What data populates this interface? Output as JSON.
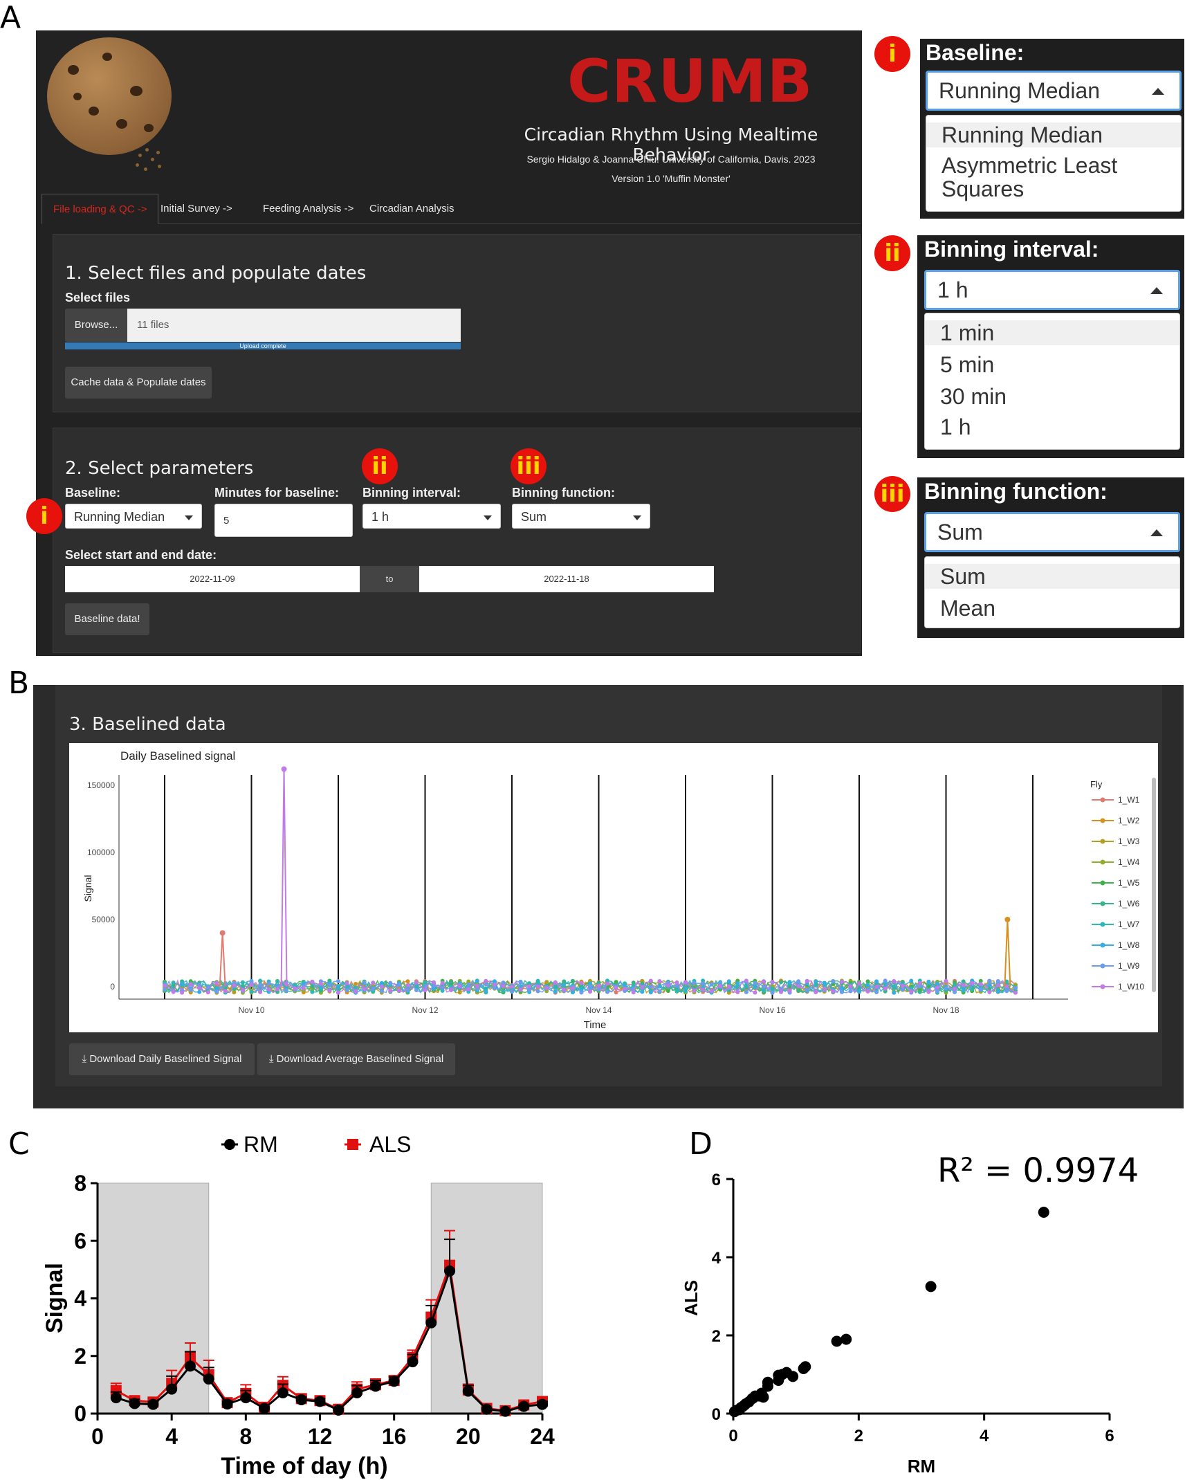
{
  "panel_labels": {
    "a": "A",
    "b": "B",
    "c": "C",
    "d": "D"
  },
  "app": {
    "title": "CRUMB",
    "subtitle": "Circadian Rhythm Using Mealtime Behavior",
    "authors": "Sergio Hidalgo & Joanna Chiu. University of California, Davis. 2023",
    "version": "Version 1.0 'Muffin Monster'",
    "tabs": [
      {
        "label": "File loading & QC ->",
        "active": true
      },
      {
        "label": "Initial Survey ->",
        "active": false
      },
      {
        "label": "Feeding Analysis ->",
        "active": false
      },
      {
        "label": "Circadian Analysis",
        "active": false
      }
    ],
    "section1": {
      "title": "1. Select files and populate dates",
      "select_files_label": "Select files",
      "browse_label": "Browse...",
      "files_value": "11 files",
      "upload_status": "Upload complete",
      "upload_progress": 1.0,
      "cache_button": "Cache data & Populate dates"
    },
    "section2": {
      "title": "2. Select parameters",
      "baseline_label": "Baseline:",
      "baseline_value": "Running Median",
      "minutes_label": "Minutes for baseline:",
      "minutes_value": "5",
      "binning_interval_label": "Binning interval:",
      "binning_interval_value": "1 h",
      "binning_function_label": "Binning function:",
      "binning_function_value": "Sum",
      "date_label": "Select start and end date:",
      "start_date": "2022-11-09",
      "to_label": "to",
      "end_date": "2022-11-18",
      "baseline_button": "Baseline data!"
    },
    "badges": {
      "i": "i",
      "ii": "ii",
      "iii": "iii"
    }
  },
  "callouts": {
    "baseline": {
      "label": "Baseline:",
      "value": "Running Median",
      "options": [
        "Running Median",
        "Asymmetric Least",
        "Squares"
      ]
    },
    "binning_interval": {
      "label": "Binning interval:",
      "value": "1 h",
      "options": [
        "1 min",
        "5 min",
        "30 min",
        "1 h"
      ]
    },
    "binning_function": {
      "label": "Binning function:",
      "value": "Sum",
      "options": [
        "Sum",
        "Mean"
      ]
    }
  },
  "panelB": {
    "section_title": "3. Baselined data",
    "download_daily": "Download Daily Baselined Signal",
    "download_average": "Download Average Baselined Signal"
  },
  "chart_data": [
    {
      "type": "scatter",
      "title": "Daily Baselined signal",
      "xlabel": "Time",
      "ylabel": "Signal",
      "yticks": [
        "0",
        "50000",
        "100000",
        "150000"
      ],
      "xticks": [
        "Nov 10",
        "Nov 12",
        "Nov 14",
        "Nov 16",
        "Nov 18"
      ],
      "ylim": [
        -5000,
        170000
      ],
      "xlim": [
        "2022-11-09",
        "2022-11-19"
      ],
      "legend_title": "Fly",
      "legend_position": "right",
      "series": [
        {
          "name": "1_W1",
          "color": "#e07b6f"
        },
        {
          "name": "1_W2",
          "color": "#d6901f"
        },
        {
          "name": "1_W3",
          "color": "#b3a020"
        },
        {
          "name": "1_W4",
          "color": "#8fae2a"
        },
        {
          "name": "1_W5",
          "color": "#3fb34a"
        },
        {
          "name": "1_W6",
          "color": "#36b58a"
        },
        {
          "name": "1_W7",
          "color": "#2cb8b3"
        },
        {
          "name": "1_W8",
          "color": "#35aee2"
        },
        {
          "name": "1_W9",
          "color": "#6b9cf0"
        },
        {
          "name": "1_W10",
          "color": "#c07be8"
        }
      ],
      "peaks": [
        {
          "series": "1_W1",
          "x": "2022-11-09 16:00",
          "y": 40000
        },
        {
          "series": "1_W10",
          "x": "2022-11-10 09:00",
          "y": 162000
        },
        {
          "series": "1_W2",
          "x": "2022-11-18 17:00",
          "y": 50000
        }
      ]
    },
    {
      "type": "line",
      "xlabel": "Time of day (h)",
      "ylabel": "Signal",
      "xlim": [
        0,
        24
      ],
      "ylim": [
        0,
        8
      ],
      "xticks": [
        0,
        4,
        8,
        12,
        16,
        20,
        24
      ],
      "yticks": [
        0,
        2,
        4,
        6,
        8
      ],
      "shaded_ranges": [
        [
          0,
          6
        ],
        [
          18,
          24
        ]
      ],
      "legend_position": "top",
      "x": [
        1,
        2,
        3,
        4,
        5,
        6,
        7,
        8,
        9,
        10,
        11,
        12,
        13,
        14,
        15,
        16,
        17,
        18,
        19,
        20,
        21,
        22,
        23,
        24
      ],
      "series": [
        {
          "name": "RM",
          "color": "#000000",
          "values": [
            0.55,
            0.35,
            0.32,
            0.85,
            1.65,
            1.2,
            0.33,
            0.55,
            0.18,
            0.72,
            0.48,
            0.42,
            0.12,
            0.72,
            0.95,
            1.12,
            1.8,
            3.15,
            4.95,
            0.78,
            0.15,
            0.08,
            0.25,
            0.32
          ],
          "errors": [
            0.2,
            0.15,
            0.1,
            0.45,
            0.5,
            0.4,
            0.1,
            0.25,
            0.05,
            0.3,
            0.1,
            0.1,
            0.05,
            0.25,
            0.2,
            0.15,
            0.25,
            0.6,
            1.1,
            0.2,
            0.05,
            0.03,
            0.05,
            0.1
          ]
        },
        {
          "name": "ALS",
          "color": "#e01010",
          "values": [
            0.8,
            0.45,
            0.4,
            1.05,
            1.95,
            1.35,
            0.38,
            0.7,
            0.22,
            0.98,
            0.52,
            0.45,
            0.15,
            0.85,
            1.0,
            1.15,
            1.95,
            3.35,
            5.15,
            0.82,
            0.18,
            0.1,
            0.3,
            0.42
          ],
          "errors": [
            0.25,
            0.12,
            0.12,
            0.45,
            0.5,
            0.5,
            0.1,
            0.3,
            0.06,
            0.3,
            0.1,
            0.1,
            0.05,
            0.25,
            0.2,
            0.15,
            0.25,
            0.6,
            1.2,
            0.2,
            0.05,
            0.03,
            0.05,
            0.1
          ]
        }
      ]
    },
    {
      "type": "scatter",
      "xlabel": "RM",
      "ylabel": "ALS",
      "xlim": [
        0,
        6
      ],
      "ylim": [
        0,
        6
      ],
      "xticks": [
        0,
        2,
        4,
        6
      ],
      "yticks": [
        0,
        2,
        4,
        6
      ],
      "annotation": "R² = 0.9974",
      "x": [
        0.02,
        0.05,
        0.08,
        0.1,
        0.12,
        0.15,
        0.18,
        0.2,
        0.25,
        0.3,
        0.32,
        0.35,
        0.42,
        0.45,
        0.48,
        0.55,
        0.55,
        0.72,
        0.72,
        0.78,
        0.85,
        0.95,
        1.12,
        1.15,
        1.65,
        1.8,
        3.15,
        4.95
      ],
      "y": [
        0.05,
        0.08,
        0.1,
        0.1,
        0.15,
        0.18,
        0.22,
        0.25,
        0.3,
        0.38,
        0.4,
        0.45,
        0.45,
        0.52,
        0.42,
        0.8,
        0.7,
        0.85,
        0.98,
        1.0,
        1.05,
        0.95,
        1.15,
        1.2,
        1.85,
        1.9,
        3.25,
        5.15
      ]
    }
  ]
}
